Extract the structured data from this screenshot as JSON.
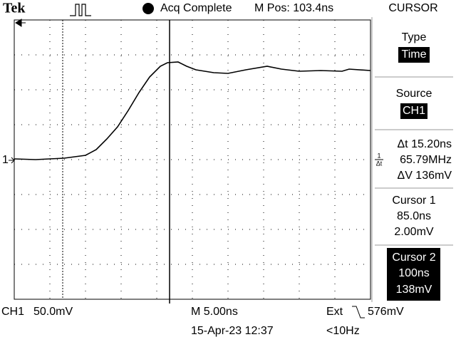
{
  "header": {
    "brand": "Tek",
    "status": "Acq Complete",
    "position": "M Pos: 103.4ns"
  },
  "menu": {
    "title": "CURSOR",
    "type": {
      "label": "Type",
      "value": "Time"
    },
    "source": {
      "label": "Source",
      "value": "CH1"
    },
    "readout": {
      "delta_t": "Δt 15.20ns",
      "freq_num": "1",
      "freq_den": "Δt",
      "freq": "65.79MHz",
      "delta_v": "ΔV 136mV"
    },
    "cursor1": {
      "label": "Cursor 1",
      "time": "85.0ns",
      "volts": "2.00mV"
    },
    "cursor2": {
      "label": "Cursor 2",
      "time": "100ns",
      "volts": "138mV"
    }
  },
  "screen": {
    "channel_marker": "1"
  },
  "footer": {
    "channel": "CH1",
    "scale": "50.0mV",
    "timebase": "M 5.00ns",
    "trigger_source": "Ext",
    "trigger_level": "576mV",
    "datetime": "15-Apr-23 12:37",
    "trigger_freq": "<10Hz"
  }
}
